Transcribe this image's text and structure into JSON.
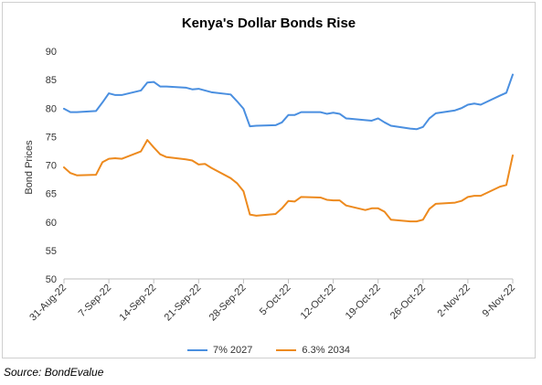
{
  "chart_data": {
    "type": "line",
    "title": "Kenya's Dollar Bonds Rise",
    "ylabel": "Bond Prices",
    "xlabel": "",
    "ylim": [
      50,
      90
    ],
    "yticks": [
      50,
      55,
      60,
      65,
      70,
      75,
      80,
      85,
      90
    ],
    "xticks": [
      "31-Aug-22",
      "7-Sep-22",
      "14-Sep-22",
      "21-Sep-22",
      "28-Sep-22",
      "5-Oct-22",
      "12-Oct-22",
      "19-Oct-22",
      "26-Oct-22",
      "2-Nov-22",
      "9-Nov-22"
    ],
    "x": [
      "2022-08-31",
      "2022-09-01",
      "2022-09-02",
      "2022-09-05",
      "2022-09-06",
      "2022-09-07",
      "2022-09-08",
      "2022-09-09",
      "2022-09-12",
      "2022-09-13",
      "2022-09-14",
      "2022-09-15",
      "2022-09-16",
      "2022-09-19",
      "2022-09-20",
      "2022-09-21",
      "2022-09-22",
      "2022-09-23",
      "2022-09-26",
      "2022-09-27",
      "2022-09-28",
      "2022-09-29",
      "2022-09-30",
      "2022-10-03",
      "2022-10-04",
      "2022-10-05",
      "2022-10-06",
      "2022-10-07",
      "2022-10-10",
      "2022-10-11",
      "2022-10-12",
      "2022-10-13",
      "2022-10-14",
      "2022-10-17",
      "2022-10-18",
      "2022-10-19",
      "2022-10-20",
      "2022-10-21",
      "2022-10-24",
      "2022-10-25",
      "2022-10-26",
      "2022-10-27",
      "2022-10-28",
      "2022-10-31",
      "2022-11-01",
      "2022-11-02",
      "2022-11-03",
      "2022-11-04",
      "2022-11-07",
      "2022-11-08",
      "2022-11-09"
    ],
    "series": [
      {
        "name": "7% 2027",
        "color": "#4a8fe0",
        "values": [
          79.9,
          79.3,
          79.3,
          79.5,
          81.0,
          82.6,
          82.3,
          82.3,
          83.1,
          84.5,
          84.6,
          83.8,
          83.8,
          83.6,
          83.3,
          83.4,
          83.1,
          82.8,
          82.4,
          81.2,
          79.9,
          76.8,
          76.9,
          77.0,
          77.5,
          78.8,
          78.8,
          79.3,
          79.3,
          79.0,
          79.2,
          79.0,
          78.2,
          77.9,
          77.8,
          78.2,
          77.5,
          76.9,
          76.4,
          76.3,
          76.7,
          78.2,
          79.1,
          79.6,
          80.0,
          80.6,
          80.8,
          80.6,
          82.2,
          82.7,
          85.9
        ]
      },
      {
        "name": "6.3% 2034",
        "color": "#ed8a1e",
        "values": [
          69.6,
          68.6,
          68.2,
          68.3,
          70.5,
          71.1,
          71.2,
          71.1,
          72.4,
          74.4,
          73.1,
          71.9,
          71.4,
          71.0,
          70.8,
          70.1,
          70.2,
          69.5,
          67.7,
          66.8,
          65.4,
          61.3,
          61.1,
          61.4,
          62.4,
          63.7,
          63.6,
          64.4,
          64.3,
          63.9,
          63.8,
          63.8,
          62.9,
          62.1,
          62.4,
          62.4,
          61.8,
          60.4,
          60.1,
          60.1,
          60.4,
          62.3,
          63.2,
          63.4,
          63.7,
          64.4,
          64.6,
          64.6,
          66.2,
          66.5,
          71.7
        ]
      }
    ],
    "grid": false,
    "legend": "bottom"
  },
  "source": "Source: BondEvalue"
}
